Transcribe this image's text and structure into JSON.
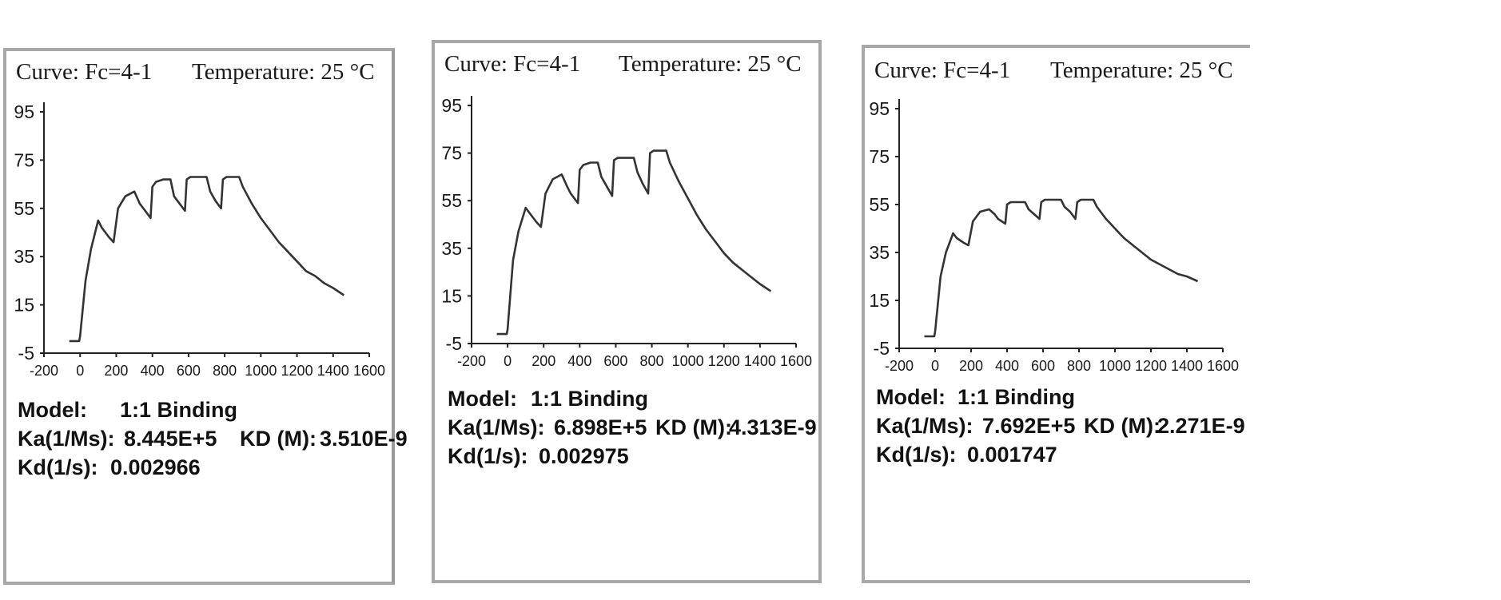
{
  "panels": [
    {
      "curve": "Curve: Fc=4-1",
      "temperature": "Temperature:   25 °C",
      "model_label": "Model:",
      "model_value": "1:1 Binding",
      "ka_label": "Ka(1/Ms):",
      "ka_value": "8.445E+5",
      "kd_big_label": "KD (M):",
      "kd_big_value": "3.510E-9",
      "kd_label": "Kd(1/s):",
      "kd_value": "0.002966"
    },
    {
      "curve": "Curve: Fc=4-1",
      "temperature": "Temperature:   25 °C",
      "model_label": "Model:",
      "model_value": "1:1 Binding",
      "ka_label": "Ka(1/Ms):",
      "ka_value": "6.898E+5",
      "kd_big_label": "KD (M):",
      "kd_big_value": "4.313E-9",
      "kd_label": "Kd(1/s):",
      "kd_value": "0.002975"
    },
    {
      "curve": "Curve: Fc=4-1",
      "temperature": "Temperature:   25 °C",
      "model_label": "Model:",
      "model_value": "1:1 Binding",
      "ka_label": "Ka(1/Ms):",
      "ka_value": "7.692E+5",
      "kd_big_label": "KD (M):",
      "kd_big_value": "2.271E-9",
      "kd_label": "Kd(1/s):",
      "kd_value": "0.001747"
    }
  ],
  "chart_data": [
    {
      "type": "line",
      "title": "",
      "xlabel": "",
      "ylabel": "",
      "xlim": [
        -200,
        1600
      ],
      "ylim": [
        -5,
        95
      ],
      "xticks": [
        -200,
        0,
        200,
        400,
        600,
        800,
        1000,
        1200,
        1400,
        1600
      ],
      "yticks": [
        -5,
        15,
        35,
        55,
        75,
        95
      ],
      "grid": false,
      "series": [
        {
          "x": [
            -60,
            -5,
            0,
            30,
            60,
            100,
            120,
            160,
            185,
            210,
            250,
            300,
            330,
            350,
            390,
            400,
            420,
            460,
            500,
            520,
            550,
            580,
            590,
            610,
            650,
            700,
            720,
            750,
            780,
            790,
            810,
            850,
            880,
            900,
            950,
            1000,
            1050,
            1100,
            1150,
            1200,
            1250,
            1300,
            1350,
            1400,
            1460
          ],
          "y": [
            0,
            0,
            2,
            25,
            38,
            50,
            47,
            43,
            41,
            55,
            60,
            62,
            57,
            55,
            51,
            64,
            66,
            67,
            67,
            60,
            57,
            54,
            67,
            68,
            68,
            68,
            62,
            58,
            55,
            67,
            68,
            68,
            68,
            64,
            57,
            51,
            46,
            41,
            37,
            33,
            29,
            27,
            24,
            22,
            19
          ]
        }
      ]
    },
    {
      "type": "line",
      "title": "",
      "xlabel": "",
      "ylabel": "",
      "xlim": [
        -200,
        1600
      ],
      "ylim": [
        -5,
        95
      ],
      "xticks": [
        -200,
        0,
        200,
        400,
        600,
        800,
        1000,
        1200,
        1400,
        1600
      ],
      "yticks": [
        -5,
        15,
        35,
        55,
        75,
        95
      ],
      "grid": false,
      "series": [
        {
          "x": [
            -60,
            -5,
            0,
            30,
            60,
            100,
            120,
            160,
            185,
            210,
            250,
            300,
            330,
            350,
            390,
            400,
            420,
            460,
            500,
            520,
            550,
            580,
            590,
            610,
            650,
            700,
            720,
            750,
            780,
            790,
            810,
            850,
            880,
            900,
            950,
            1000,
            1050,
            1100,
            1150,
            1200,
            1250,
            1300,
            1350,
            1400,
            1460
          ],
          "y": [
            -1,
            -1,
            1,
            30,
            42,
            52,
            50,
            46,
            44,
            58,
            64,
            66,
            61,
            58,
            54,
            68,
            70,
            71,
            71,
            65,
            61,
            57,
            72,
            73,
            73,
            73,
            67,
            62,
            58,
            75,
            76,
            76,
            76,
            71,
            63,
            56,
            49,
            43,
            38,
            33,
            29,
            26,
            23,
            20,
            17
          ]
        }
      ]
    },
    {
      "type": "line",
      "title": "",
      "xlabel": "",
      "ylabel": "",
      "xlim": [
        -200,
        1600
      ],
      "ylim": [
        -5,
        95
      ],
      "xticks": [
        -200,
        0,
        200,
        400,
        600,
        800,
        1000,
        1200,
        1400,
        1600
      ],
      "yticks": [
        -5,
        15,
        35,
        55,
        75,
        95
      ],
      "grid": false,
      "series": [
        {
          "x": [
            -60,
            -5,
            0,
            30,
            60,
            100,
            120,
            160,
            185,
            210,
            250,
            300,
            330,
            350,
            390,
            400,
            420,
            460,
            500,
            520,
            550,
            580,
            590,
            610,
            650,
            700,
            720,
            750,
            780,
            790,
            810,
            850,
            880,
            900,
            950,
            1000,
            1050,
            1100,
            1150,
            1200,
            1250,
            1300,
            1350,
            1400,
            1460
          ],
          "y": [
            0,
            0,
            2,
            25,
            35,
            43,
            41,
            39,
            38,
            48,
            52,
            53,
            51,
            49,
            47,
            55,
            56,
            56,
            56,
            53,
            51,
            49,
            56,
            57,
            57,
            57,
            54,
            52,
            49,
            56,
            57,
            57,
            57,
            54,
            49,
            45,
            41,
            38,
            35,
            32,
            30,
            28,
            26,
            25,
            23
          ]
        }
      ]
    }
  ]
}
